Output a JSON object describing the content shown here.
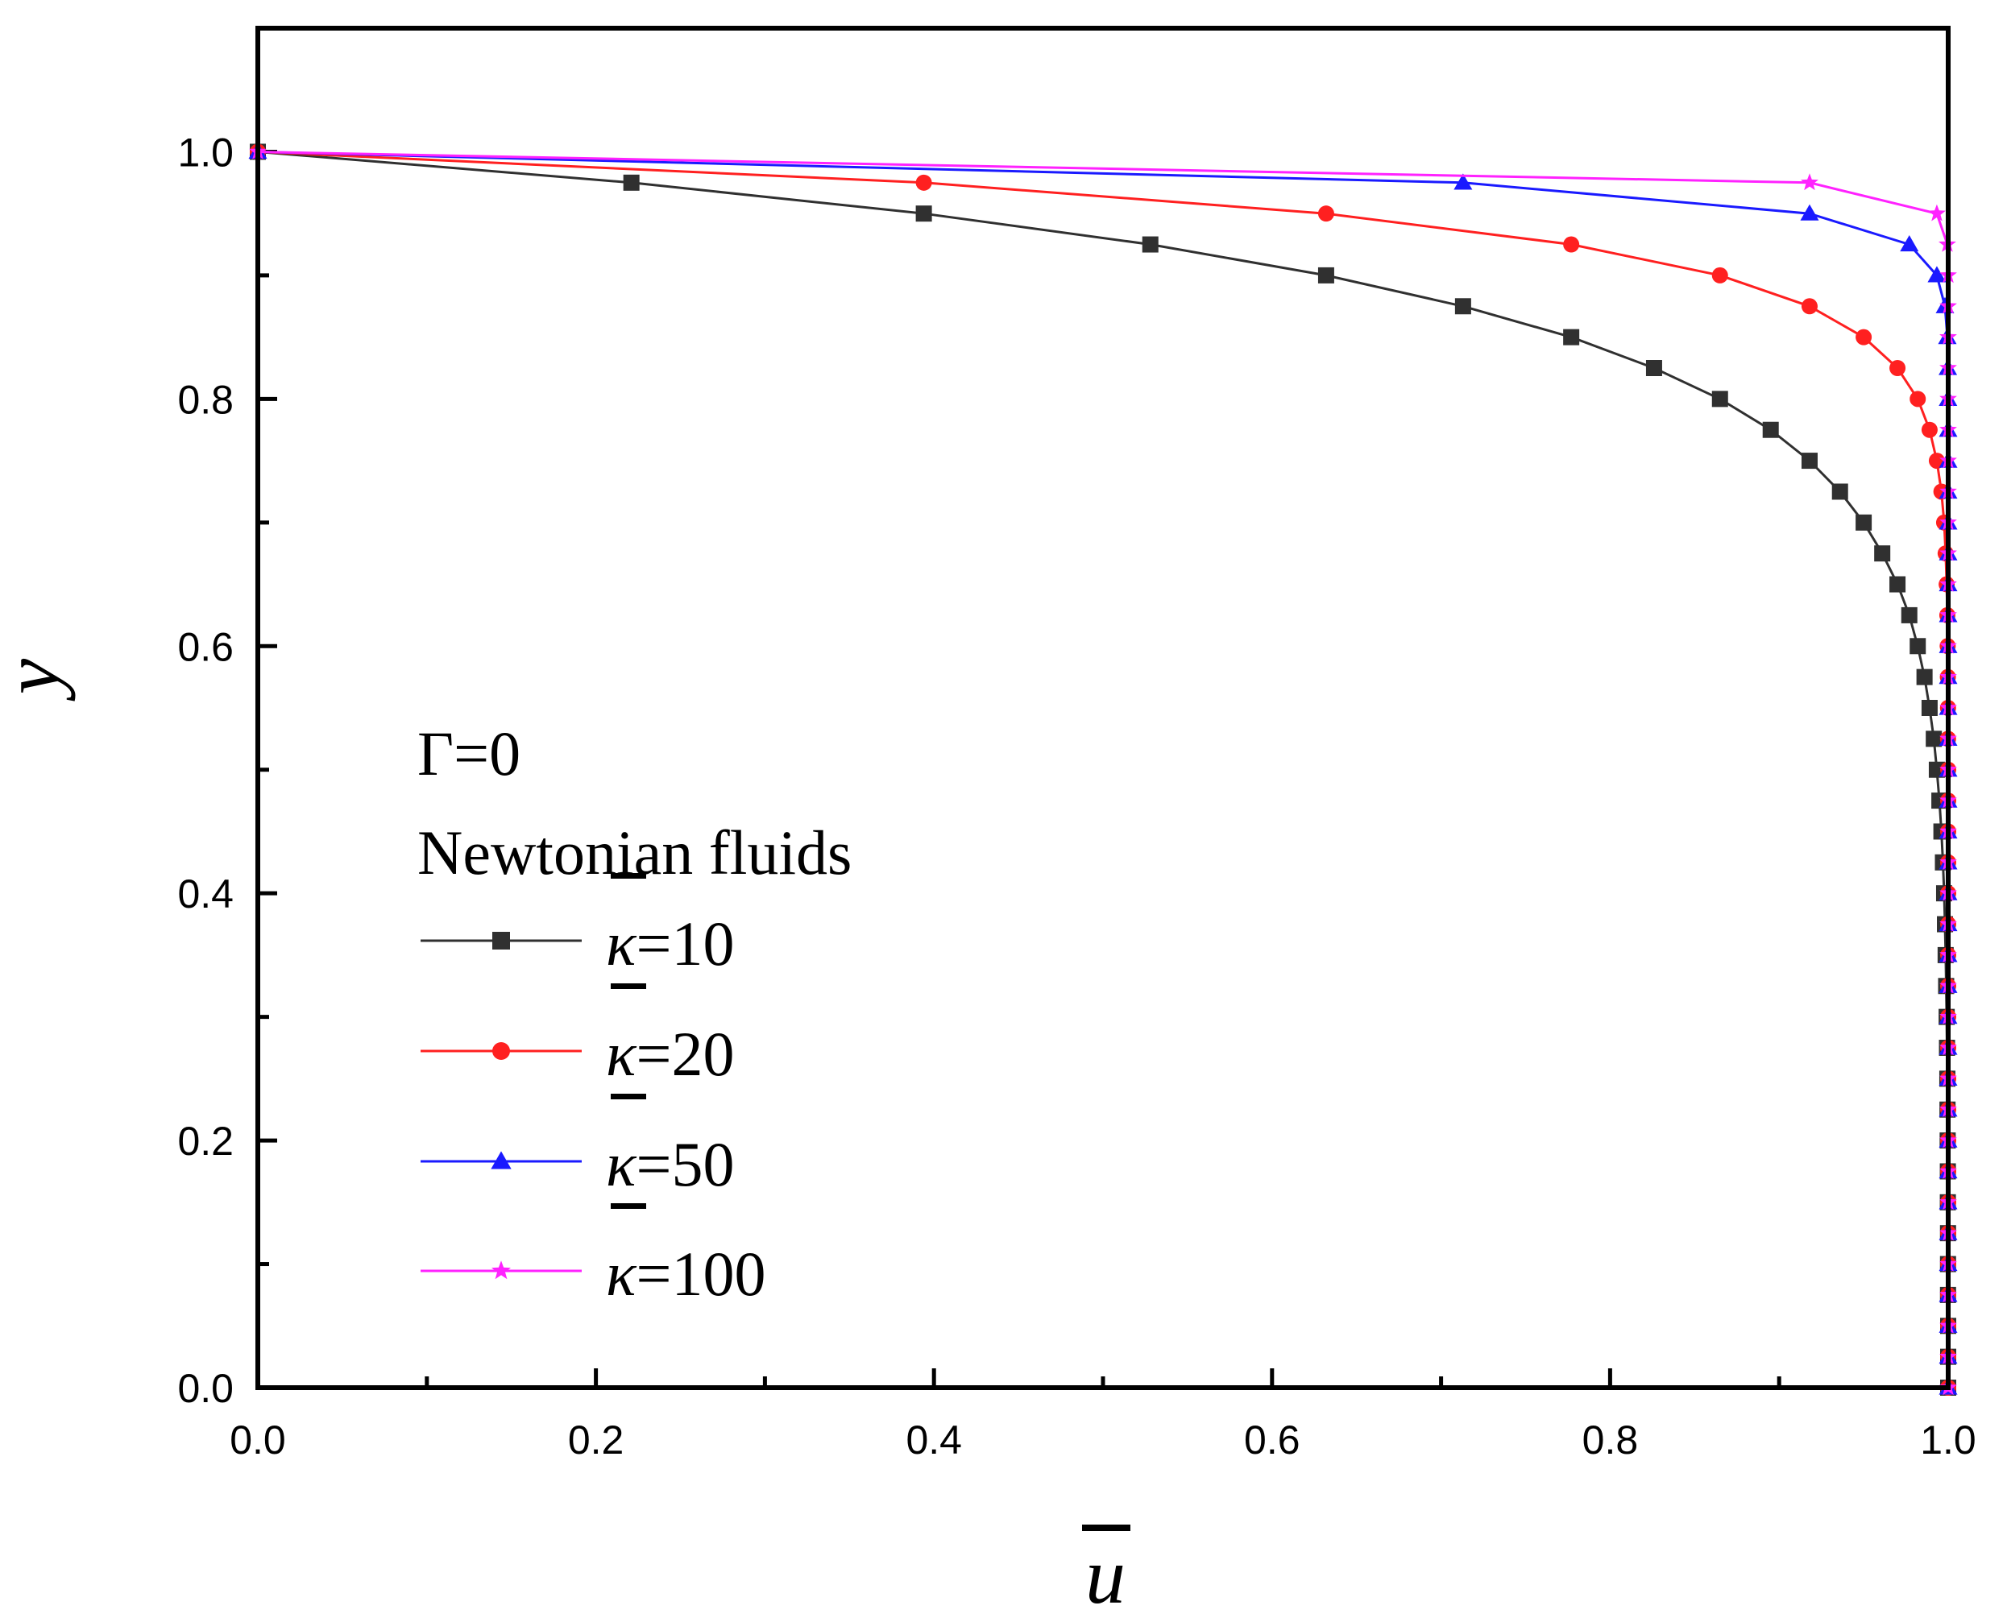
{
  "chart_data": {
    "type": "line",
    "title": "",
    "xlabel": "u",
    "ylabel": "y",
    "xlim": [
      0.0,
      1.0
    ],
    "ylim": [
      0.0,
      1.1
    ],
    "xticks": [
      "0.0",
      "0.2",
      "0.4",
      "0.6",
      "0.8",
      "1.0"
    ],
    "yticks": [
      "0.0",
      "0.2",
      "0.4",
      "0.6",
      "0.8",
      "1.0"
    ],
    "annotations": [
      "Γ=0",
      "Newtonian fluids"
    ],
    "legend_position": "center-left",
    "series": [
      {
        "name": "κ=10",
        "kappa_symbol": "κ",
        "legend_value": "=10",
        "color": "#303030",
        "marker": "square",
        "x": [
          0.0,
          0.221,
          0.394,
          0.528,
          0.632,
          0.713,
          0.777,
          0.826,
          0.865,
          0.895,
          0.918,
          0.936,
          0.95,
          0.961,
          0.97,
          0.977,
          0.982,
          0.986,
          0.989,
          0.9915,
          0.9933,
          0.9948,
          0.996,
          0.9969,
          0.9976,
          0.9981,
          0.9985,
          0.9988,
          0.9991,
          0.9993,
          0.9995,
          0.9996,
          0.9997,
          0.9998,
          0.9998,
          0.9999,
          0.9999,
          0.9999,
          1.0,
          1.0,
          1.0,
          1.0
        ],
        "y": [
          1.0,
          0.975,
          0.95,
          0.925,
          0.9,
          0.875,
          0.85,
          0.825,
          0.8,
          0.775,
          0.75,
          0.725,
          0.7,
          0.675,
          0.65,
          0.625,
          0.6,
          0.575,
          0.55,
          0.525,
          0.5,
          0.475,
          0.45,
          0.425,
          0.4,
          0.375,
          0.35,
          0.325,
          0.3,
          0.275,
          0.25,
          0.225,
          0.2,
          0.175,
          0.15,
          0.125,
          0.1,
          0.075,
          0.05,
          0.025,
          0.0,
          0.0
        ]
      },
      {
        "name": "κ=20",
        "kappa_symbol": "κ",
        "legend_value": "=20",
        "color": "#ff2020",
        "marker": "circle",
        "x": [
          0.0,
          0.394,
          0.632,
          0.777,
          0.865,
          0.918,
          0.95,
          0.97,
          0.982,
          0.989,
          0.9933,
          0.996,
          0.9976,
          0.9985,
          0.9991,
          0.9995,
          0.9997,
          0.9998,
          0.9999,
          0.9999,
          1.0,
          1.0,
          1.0,
          1.0,
          1.0,
          1.0,
          1.0,
          1.0,
          1.0,
          1.0,
          1.0,
          1.0,
          1.0,
          1.0,
          1.0,
          1.0,
          1.0,
          1.0,
          1.0,
          1.0,
          1.0
        ],
        "y": [
          1.0,
          0.975,
          0.95,
          0.925,
          0.9,
          0.875,
          0.85,
          0.825,
          0.8,
          0.775,
          0.75,
          0.725,
          0.7,
          0.675,
          0.65,
          0.625,
          0.6,
          0.575,
          0.55,
          0.525,
          0.5,
          0.475,
          0.45,
          0.425,
          0.4,
          0.375,
          0.35,
          0.325,
          0.3,
          0.275,
          0.25,
          0.225,
          0.2,
          0.175,
          0.15,
          0.125,
          0.1,
          0.075,
          0.05,
          0.025,
          0.0
        ]
      },
      {
        "name": "κ=50",
        "kappa_symbol": "κ",
        "legend_value": "=50",
        "color": "#1a1aff",
        "marker": "triangle",
        "x": [
          0.0,
          0.713,
          0.918,
          0.977,
          0.9933,
          0.9981,
          0.9995,
          0.9998,
          0.9999,
          1.0,
          1.0,
          1.0,
          1.0,
          1.0,
          1.0,
          1.0,
          1.0,
          1.0,
          1.0,
          1.0,
          1.0,
          1.0,
          1.0,
          1.0,
          1.0,
          1.0,
          1.0,
          1.0,
          1.0,
          1.0,
          1.0,
          1.0,
          1.0,
          1.0,
          1.0,
          1.0,
          1.0,
          1.0,
          1.0,
          1.0,
          1.0
        ],
        "y": [
          1.0,
          0.975,
          0.95,
          0.925,
          0.9,
          0.875,
          0.85,
          0.825,
          0.8,
          0.775,
          0.75,
          0.725,
          0.7,
          0.675,
          0.65,
          0.625,
          0.6,
          0.575,
          0.55,
          0.525,
          0.5,
          0.475,
          0.45,
          0.425,
          0.4,
          0.375,
          0.35,
          0.325,
          0.3,
          0.275,
          0.25,
          0.225,
          0.2,
          0.175,
          0.15,
          0.125,
          0.1,
          0.075,
          0.05,
          0.025,
          0.0
        ]
      },
      {
        "name": "κ=100",
        "kappa_symbol": "κ",
        "legend_value": "=100",
        "color": "#ff22ff",
        "marker": "star",
        "x": [
          0.0,
          0.918,
          0.9933,
          0.9995,
          1.0,
          1.0,
          1.0,
          1.0,
          1.0,
          1.0,
          1.0,
          1.0,
          1.0,
          1.0,
          1.0,
          1.0,
          1.0,
          1.0,
          1.0,
          1.0,
          1.0,
          1.0,
          1.0,
          1.0,
          1.0,
          1.0,
          1.0,
          1.0,
          1.0,
          1.0,
          1.0,
          1.0,
          1.0,
          1.0,
          1.0,
          1.0,
          1.0,
          1.0,
          1.0,
          1.0,
          1.0
        ],
        "y": [
          1.0,
          0.975,
          0.95,
          0.925,
          0.9,
          0.875,
          0.85,
          0.825,
          0.8,
          0.775,
          0.75,
          0.725,
          0.7,
          0.675,
          0.65,
          0.625,
          0.6,
          0.575,
          0.55,
          0.525,
          0.5,
          0.475,
          0.45,
          0.425,
          0.4,
          0.375,
          0.35,
          0.325,
          0.3,
          0.275,
          0.25,
          0.225,
          0.2,
          0.175,
          0.15,
          0.125,
          0.1,
          0.075,
          0.05,
          0.025,
          0.0
        ]
      }
    ]
  }
}
